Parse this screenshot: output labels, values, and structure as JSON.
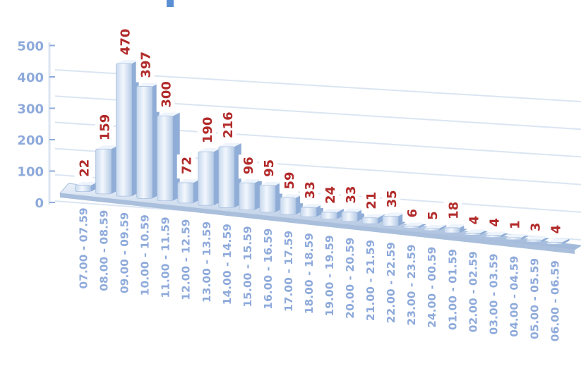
{
  "chart_data": {
    "type": "bar",
    "categories": [
      "07.00 - 07.59",
      "08.00 - 08.59",
      "09.00 - 09.59",
      "10.00 - 10.59",
      "11.00 - 11.59",
      "12.00 - 12.59",
      "13.00 - 13.59",
      "14.00 - 14.59",
      "15.00 - 15.59",
      "16.00 - 16.59",
      "17.00 - 17.59",
      "18.00 - 18.59",
      "19.00 - 19.59",
      "20.00 - 20.59",
      "21.00 - 21.59",
      "22.00 - 22.59",
      "23.00 - 23.59",
      "24.00 - 00.59",
      "01.00 - 01.59",
      "02.00 - 02.59",
      "03.00 - 03.59",
      "04.00 - 04.59",
      "05.00 - 05.59",
      "06.00 - 06.59"
    ],
    "values": [
      22,
      159,
      470,
      397,
      300,
      72,
      190,
      216,
      96,
      95,
      59,
      33,
      24,
      33,
      21,
      35,
      6,
      5,
      18,
      4,
      4,
      1,
      3,
      4
    ],
    "yticks": [
      0,
      100,
      200,
      300,
      400,
      500
    ],
    "ylim": [
      0,
      500
    ],
    "grid": true,
    "legend": "none",
    "colors": {
      "bar_light": "#eef4fc",
      "bar_mid": "#c6d8ef",
      "bar_dark": "#8fadd6",
      "axis_text": "#8eaadb",
      "data_label": "#b22a2a",
      "grid": "#dbe5f2",
      "floor": "#a9bfdc",
      "title": "#5b8fd4"
    }
  }
}
